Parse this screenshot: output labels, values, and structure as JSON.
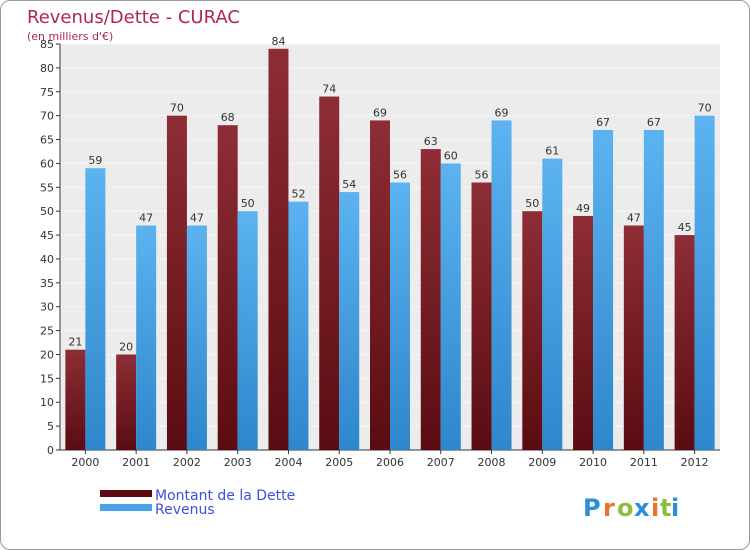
{
  "chart_data": {
    "type": "bar",
    "title": "Revenus/Dette - CURAC",
    "subtitle": "(en milliers d'€)",
    "categories": [
      "2000",
      "2001",
      "2002",
      "2003",
      "2004",
      "2005",
      "2006",
      "2007",
      "2008",
      "2009",
      "2010",
      "2011",
      "2012"
    ],
    "series": [
      {
        "name": "Montant de la Dette",
        "color": "#7a1c24",
        "values": [
          21,
          20,
          70,
          68,
          84,
          74,
          69,
          63,
          56,
          50,
          49,
          47,
          45
        ]
      },
      {
        "name": "Revenus",
        "color": "#4aa3e8",
        "values": [
          59,
          47,
          47,
          50,
          52,
          54,
          56,
          60,
          69,
          61,
          67,
          67,
          70
        ]
      }
    ],
    "ylim": [
      0,
      85
    ],
    "ytick_step": 5,
    "grid": true,
    "legend": "bottom-left",
    "title_color": "#b0245a",
    "legend_text_color": "#3b4fe0"
  },
  "brand": {
    "letters": [
      "P",
      "r",
      "o",
      "x",
      "i",
      "t",
      "i"
    ],
    "colors": [
      "#2a8fd6",
      "#e8732a",
      "#8bbf3a",
      "#2a8fd6",
      "#e8732a",
      "#8bbf3a",
      "#2a8fd6"
    ]
  }
}
